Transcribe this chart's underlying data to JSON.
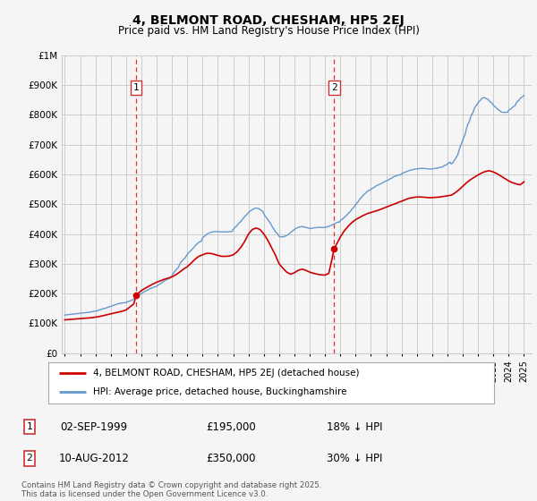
{
  "title": "4, BELMONT ROAD, CHESHAM, HP5 2EJ",
  "subtitle": "Price paid vs. HM Land Registry's House Price Index (HPI)",
  "legend_property": "4, BELMONT ROAD, CHESHAM, HP5 2EJ (detached house)",
  "legend_hpi": "HPI: Average price, detached house, Buckinghamshire",
  "marker1_label": "1",
  "marker1_date": "02-SEP-1999",
  "marker1_price": "£195,000",
  "marker1_hpi": "18% ↓ HPI",
  "marker1_year": 1999.67,
  "marker1_value": 195000,
  "marker2_label": "2",
  "marker2_date": "10-AUG-2012",
  "marker2_price": "£350,000",
  "marker2_hpi": "30% ↓ HPI",
  "marker2_year": 2012.6,
  "marker2_value": 350000,
  "footnote": "Contains HM Land Registry data © Crown copyright and database right 2025.\nThis data is licensed under the Open Government Licence v3.0.",
  "property_color": "#cc0000",
  "hpi_color": "#6699cc",
  "background_color": "#f5f5f5",
  "grid_color": "#cccccc",
  "vline_color": "#dd3333",
  "ylim": [
    0,
    1000000
  ],
  "xlim_start": 1994.8,
  "xlim_end": 2025.5,
  "hpi_data": {
    "years": [
      1995.0,
      1995.08,
      1995.17,
      1995.25,
      1995.33,
      1995.42,
      1995.5,
      1995.58,
      1995.67,
      1995.75,
      1995.83,
      1995.92,
      1996.0,
      1996.08,
      1996.17,
      1996.25,
      1996.33,
      1996.42,
      1996.5,
      1996.58,
      1996.67,
      1996.75,
      1996.83,
      1996.92,
      1997.0,
      1997.08,
      1997.17,
      1997.25,
      1997.33,
      1997.42,
      1997.5,
      1997.58,
      1997.67,
      1997.75,
      1997.83,
      1997.92,
      1998.0,
      1998.08,
      1998.17,
      1998.25,
      1998.33,
      1998.42,
      1998.5,
      1998.58,
      1998.67,
      1998.75,
      1998.83,
      1998.92,
      1999.0,
      1999.08,
      1999.17,
      1999.25,
      1999.33,
      1999.42,
      1999.5,
      1999.58,
      1999.67,
      1999.75,
      1999.83,
      1999.92,
      2000.0,
      2000.08,
      2000.17,
      2000.25,
      2000.33,
      2000.42,
      2000.5,
      2000.58,
      2000.67,
      2000.75,
      2000.83,
      2000.92,
      2001.0,
      2001.08,
      2001.17,
      2001.25,
      2001.33,
      2001.42,
      2001.5,
      2001.58,
      2001.67,
      2001.75,
      2001.83,
      2001.92,
      2002.0,
      2002.08,
      2002.17,
      2002.25,
      2002.33,
      2002.42,
      2002.5,
      2002.58,
      2002.67,
      2002.75,
      2002.83,
      2002.92,
      2003.0,
      2003.08,
      2003.17,
      2003.25,
      2003.33,
      2003.42,
      2003.5,
      2003.58,
      2003.67,
      2003.75,
      2003.83,
      2003.92,
      2004.0,
      2004.08,
      2004.17,
      2004.25,
      2004.33,
      2004.42,
      2004.5,
      2004.58,
      2004.67,
      2004.75,
      2004.83,
      2004.92,
      2005.0,
      2005.08,
      2005.17,
      2005.25,
      2005.33,
      2005.42,
      2005.5,
      2005.58,
      2005.67,
      2005.75,
      2005.83,
      2005.92,
      2006.0,
      2006.08,
      2006.17,
      2006.25,
      2006.33,
      2006.42,
      2006.5,
      2006.58,
      2006.67,
      2006.75,
      2006.83,
      2006.92,
      2007.0,
      2007.08,
      2007.17,
      2007.25,
      2007.33,
      2007.42,
      2007.5,
      2007.58,
      2007.67,
      2007.75,
      2007.83,
      2007.92,
      2008.0,
      2008.08,
      2008.17,
      2008.25,
      2008.33,
      2008.42,
      2008.5,
      2008.58,
      2008.67,
      2008.75,
      2008.83,
      2008.92,
      2009.0,
      2009.08,
      2009.17,
      2009.25,
      2009.33,
      2009.42,
      2009.5,
      2009.58,
      2009.67,
      2009.75,
      2009.83,
      2009.92,
      2010.0,
      2010.08,
      2010.17,
      2010.25,
      2010.33,
      2010.42,
      2010.5,
      2010.58,
      2010.67,
      2010.75,
      2010.83,
      2010.92,
      2011.0,
      2011.08,
      2011.17,
      2011.25,
      2011.33,
      2011.42,
      2011.5,
      2011.58,
      2011.67,
      2011.75,
      2011.83,
      2011.92,
      2012.0,
      2012.08,
      2012.17,
      2012.25,
      2012.33,
      2012.42,
      2012.5,
      2012.58,
      2012.67,
      2012.75,
      2012.83,
      2012.92,
      2013.0,
      2013.08,
      2013.17,
      2013.25,
      2013.33,
      2013.42,
      2013.5,
      2013.58,
      2013.67,
      2013.75,
      2013.83,
      2013.92,
      2014.0,
      2014.08,
      2014.17,
      2014.25,
      2014.33,
      2014.42,
      2014.5,
      2014.58,
      2014.67,
      2014.75,
      2014.83,
      2014.92,
      2015.0,
      2015.08,
      2015.17,
      2015.25,
      2015.33,
      2015.42,
      2015.5,
      2015.58,
      2015.67,
      2015.75,
      2015.83,
      2015.92,
      2016.0,
      2016.08,
      2016.17,
      2016.25,
      2016.33,
      2016.42,
      2016.5,
      2016.58,
      2016.67,
      2016.75,
      2016.83,
      2016.92,
      2017.0,
      2017.08,
      2017.17,
      2017.25,
      2017.33,
      2017.42,
      2017.5,
      2017.58,
      2017.67,
      2017.75,
      2017.83,
      2017.92,
      2018.0,
      2018.08,
      2018.17,
      2018.25,
      2018.33,
      2018.42,
      2018.5,
      2018.58,
      2018.67,
      2018.75,
      2018.83,
      2018.92,
      2019.0,
      2019.08,
      2019.17,
      2019.25,
      2019.33,
      2019.42,
      2019.5,
      2019.58,
      2019.67,
      2019.75,
      2019.83,
      2019.92,
      2020.0,
      2020.08,
      2020.17,
      2020.25,
      2020.33,
      2020.42,
      2020.5,
      2020.58,
      2020.67,
      2020.75,
      2020.83,
      2020.92,
      2021.0,
      2021.08,
      2021.17,
      2021.25,
      2021.33,
      2021.42,
      2021.5,
      2021.58,
      2021.67,
      2021.75,
      2021.83,
      2021.92,
      2022.0,
      2022.08,
      2022.17,
      2022.25,
      2022.33,
      2022.42,
      2022.5,
      2022.58,
      2022.67,
      2022.75,
      2022.83,
      2022.92,
      2023.0,
      2023.08,
      2023.17,
      2023.25,
      2023.33,
      2023.42,
      2023.5,
      2023.58,
      2023.67,
      2023.75,
      2023.83,
      2023.92,
      2024.0,
      2024.08,
      2024.17,
      2024.25,
      2024.33,
      2024.42,
      2024.5,
      2024.58,
      2024.67,
      2024.75,
      2024.83,
      2024.92,
      2025.0
    ],
    "values": [
      128000,
      128500,
      129000,
      129500,
      130000,
      130500,
      131000,
      131500,
      132000,
      132500,
      133000,
      133500,
      134000,
      134500,
      135000,
      135500,
      136000,
      136500,
      137000,
      137500,
      138000,
      139000,
      140000,
      140500,
      141000,
      142000,
      143000,
      145000,
      146000,
      148000,
      149000,
      150000,
      151000,
      153000,
      154000,
      156000,
      157000,
      159000,
      160000,
      162000,
      163000,
      165000,
      166000,
      167000,
      168000,
      168500,
      169000,
      169500,
      170000,
      172000,
      174000,
      175000,
      177000,
      179000,
      182000,
      185000,
      188000,
      191000,
      194000,
      197000,
      200000,
      203000,
      206000,
      208000,
      210000,
      212000,
      215000,
      217000,
      218000,
      220000,
      222000,
      223000,
      225000,
      228000,
      231000,
      233000,
      236000,
      239000,
      242000,
      245000,
      247000,
      249000,
      250000,
      255000,
      260000,
      267000,
      274000,
      278000,
      283000,
      288000,
      298000,
      305000,
      310000,
      315000,
      318000,
      325000,
      332000,
      337000,
      341000,
      345000,
      350000,
      354000,
      360000,
      364000,
      368000,
      372000,
      374000,
      376000,
      387000,
      391000,
      394000,
      398000,
      401000,
      403000,
      405000,
      406000,
      407000,
      408000,
      408000,
      408000,
      408000,
      408000,
      407000,
      407000,
      407000,
      407000,
      407000,
      407000,
      407000,
      408000,
      408000,
      408000,
      415000,
      420000,
      424000,
      428000,
      434000,
      438000,
      442000,
      448000,
      453000,
      458000,
      462000,
      467000,
      472000,
      476000,
      479000,
      482000,
      484000,
      486000,
      487000,
      486000,
      485000,
      482000,
      480000,
      476000,
      468000,
      460000,
      455000,
      450000,
      443000,
      437000,
      430000,
      422000,
      416000,
      408000,
      404000,
      400000,
      392000,
      390000,
      391000,
      390000,
      392000,
      393000,
      395000,
      398000,
      401000,
      405000,
      408000,
      412000,
      415000,
      418000,
      420000,
      422000,
      423000,
      424000,
      425000,
      424000,
      423000,
      422000,
      421000,
      420000,
      418000,
      419000,
      419000,
      420000,
      421000,
      421000,
      422000,
      422000,
      422000,
      422000,
      422000,
      422000,
      422000,
      423000,
      424000,
      426000,
      427000,
      429000,
      432000,
      433000,
      435000,
      438000,
      440000,
      439000,
      445000,
      448000,
      451000,
      455000,
      459000,
      463000,
      468000,
      472000,
      476000,
      483000,
      487000,
      492000,
      498000,
      504000,
      509000,
      515000,
      520000,
      525000,
      530000,
      534000,
      538000,
      542000,
      545000,
      547000,
      550000,
      553000,
      555000,
      558000,
      561000,
      563000,
      565000,
      567000,
      569000,
      572000,
      574000,
      576000,
      578000,
      580000,
      582000,
      585000,
      587000,
      589000,
      592000,
      594000,
      595000,
      597000,
      598000,
      598000,
      602000,
      604000,
      606000,
      608000,
      609000,
      611000,
      613000,
      614000,
      615000,
      616000,
      617000,
      618000,
      618000,
      619000,
      619000,
      620000,
      620000,
      620000,
      620000,
      619000,
      619000,
      618000,
      618000,
      618000,
      618000,
      619000,
      620000,
      620000,
      621000,
      622000,
      623000,
      624000,
      625000,
      628000,
      630000,
      632000,
      635000,
      638000,
      641000,
      635000,
      638000,
      645000,
      650000,
      658000,
      665000,
      680000,
      692000,
      703000,
      715000,
      726000,
      736000,
      755000,
      768000,
      776000,
      790000,
      800000,
      808000,
      820000,
      828000,
      834000,
      840000,
      845000,
      849000,
      855000,
      857000,
      857000,
      855000,
      853000,
      851000,
      845000,
      842000,
      838000,
      832000,
      828000,
      824000,
      820000,
      817000,
      813000,
      810000,
      808000,
      808000,
      808000,
      808000,
      808000,
      815000,
      818000,
      820000,
      825000,
      828000,
      831000,
      840000,
      845000,
      848000,
      855000,
      858000,
      861000,
      865000
    ]
  },
  "property_data": {
    "line_years": [
      1995.0,
      1995.25,
      1995.5,
      1995.75,
      1996.0,
      1996.25,
      1996.5,
      1996.75,
      1997.0,
      1997.25,
      1997.5,
      1997.75,
      1998.0,
      1998.25,
      1998.5,
      1998.75,
      1999.0,
      1999.25,
      1999.5,
      1999.67,
      2000.0,
      2000.25,
      2000.5,
      2000.75,
      2001.0,
      2001.25,
      2001.5,
      2001.75,
      2002.0,
      2002.25,
      2002.5,
      2002.75,
      2003.0,
      2003.25,
      2003.5,
      2003.75,
      2004.0,
      2004.25,
      2004.5,
      2004.75,
      2005.0,
      2005.25,
      2005.5,
      2005.75,
      2006.0,
      2006.25,
      2006.5,
      2006.75,
      2007.0,
      2007.25,
      2007.5,
      2007.75,
      2008.0,
      2008.25,
      2008.5,
      2008.75,
      2009.0,
      2009.25,
      2009.5,
      2009.75,
      2010.0,
      2010.25,
      2010.5,
      2010.75,
      2011.0,
      2011.25,
      2011.5,
      2011.75,
      2012.0,
      2012.25,
      2012.6,
      2013.0,
      2013.25,
      2013.5,
      2013.75,
      2014.0,
      2014.25,
      2014.5,
      2014.75,
      2015.0,
      2015.25,
      2015.5,
      2015.75,
      2016.0,
      2016.25,
      2016.5,
      2016.75,
      2017.0,
      2017.25,
      2017.5,
      2017.75,
      2018.0,
      2018.25,
      2018.5,
      2018.75,
      2019.0,
      2019.25,
      2019.5,
      2019.75,
      2020.0,
      2020.25,
      2020.5,
      2020.75,
      2021.0,
      2021.25,
      2021.5,
      2021.75,
      2022.0,
      2022.25,
      2022.5,
      2022.75,
      2023.0,
      2023.25,
      2023.5,
      2023.75,
      2024.0,
      2024.25,
      2024.5,
      2024.75,
      2025.0
    ],
    "line_values": [
      112000,
      113000,
      114000,
      115000,
      116000,
      117000,
      118000,
      119000,
      121000,
      123000,
      126000,
      129000,
      132000,
      135000,
      138000,
      141000,
      145000,
      155000,
      165000,
      195000,
      210000,
      218000,
      225000,
      232000,
      238000,
      243000,
      248000,
      252000,
      256000,
      263000,
      272000,
      282000,
      290000,
      302000,
      315000,
      325000,
      330000,
      335000,
      335000,
      332000,
      328000,
      325000,
      325000,
      326000,
      330000,
      340000,
      355000,
      375000,
      400000,
      415000,
      420000,
      415000,
      400000,
      380000,
      355000,
      330000,
      300000,
      285000,
      272000,
      265000,
      270000,
      278000,
      282000,
      278000,
      272000,
      268000,
      265000,
      263000,
      262000,
      268000,
      350000,
      390000,
      410000,
      425000,
      438000,
      448000,
      455000,
      462000,
      468000,
      472000,
      476000,
      480000,
      485000,
      490000,
      495000,
      500000,
      505000,
      510000,
      515000,
      520000,
      522000,
      524000,
      524000,
      523000,
      522000,
      522000,
      523000,
      524000,
      526000,
      528000,
      530000,
      538000,
      548000,
      560000,
      572000,
      582000,
      590000,
      598000,
      605000,
      610000,
      612000,
      608000,
      602000,
      594000,
      586000,
      578000,
      572000,
      568000,
      565000,
      575000
    ]
  }
}
